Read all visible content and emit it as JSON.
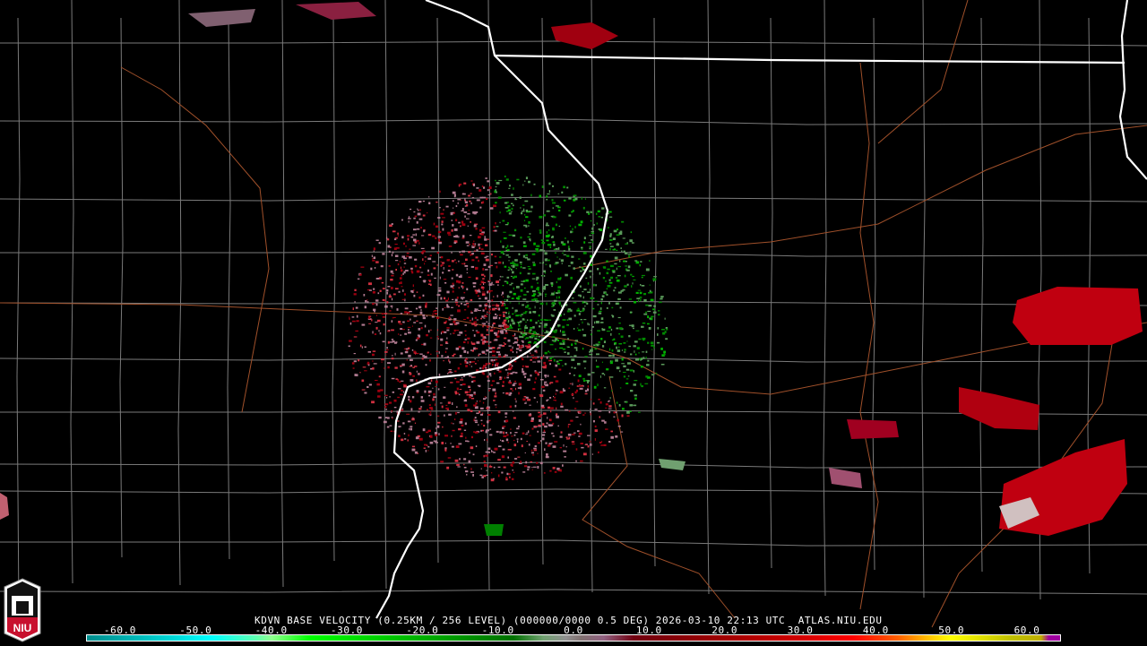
{
  "product": {
    "caption": "KDVN BASE VELOCITY (0.25KM / 256 LEVEL) (000000/0000 0.5 DEG) 2026-03-10 22:13 UTC  ATLAS.NIU.EDU",
    "station": "KDVN",
    "timestamp": "2026-03-10 22:13 UTC"
  },
  "logo": {
    "text": "NIU",
    "colors": {
      "red": "#c8102e",
      "white": "#ffffff"
    }
  },
  "colorbar": {
    "units_range": [
      -64.5,
      64.5
    ],
    "ticks": [
      "-60.0",
      "-50.0",
      "-40.0",
      "-30.0",
      "-20.0",
      "-10.0",
      "0.0",
      "10.0",
      "20.0",
      "30.0",
      "40.0",
      "50.0",
      "60.0"
    ],
    "tick_values": [
      -60,
      -50,
      -40,
      -30,
      -20,
      -10,
      0,
      10,
      20,
      30,
      40,
      50,
      60
    ],
    "stops": [
      {
        "v": -64,
        "c": "#009090"
      },
      {
        "v": -52,
        "c": "#00e0e0"
      },
      {
        "v": -48,
        "c": "#00ffff"
      },
      {
        "v": -42,
        "c": "#60ffb0"
      },
      {
        "v": -40,
        "c": "#90ff90"
      },
      {
        "v": -35,
        "c": "#00ff00"
      },
      {
        "v": -20,
        "c": "#00b000"
      },
      {
        "v": -8,
        "c": "#007000"
      },
      {
        "v": -4,
        "c": "#70a070"
      },
      {
        "v": -1,
        "c": "#909090"
      },
      {
        "v": 1,
        "c": "#807070"
      },
      {
        "v": 4,
        "c": "#906080"
      },
      {
        "v": 8,
        "c": "#700010"
      },
      {
        "v": 20,
        "c": "#a00000"
      },
      {
        "v": 30,
        "c": "#d00000"
      },
      {
        "v": 37,
        "c": "#ff0000"
      },
      {
        "v": 43,
        "c": "#ff6000"
      },
      {
        "v": 47,
        "c": "#ffc000"
      },
      {
        "v": 50,
        "c": "#ffff00"
      },
      {
        "v": 58,
        "c": "#c0c000"
      },
      {
        "v": 62,
        "c": "#c0b000"
      },
      {
        "v": 63,
        "c": "#a000a0"
      }
    ]
  },
  "map_colors": {
    "background": "#000000",
    "county": "#7a7a7a",
    "state": "#ffffff",
    "road": "#a0502a"
  }
}
